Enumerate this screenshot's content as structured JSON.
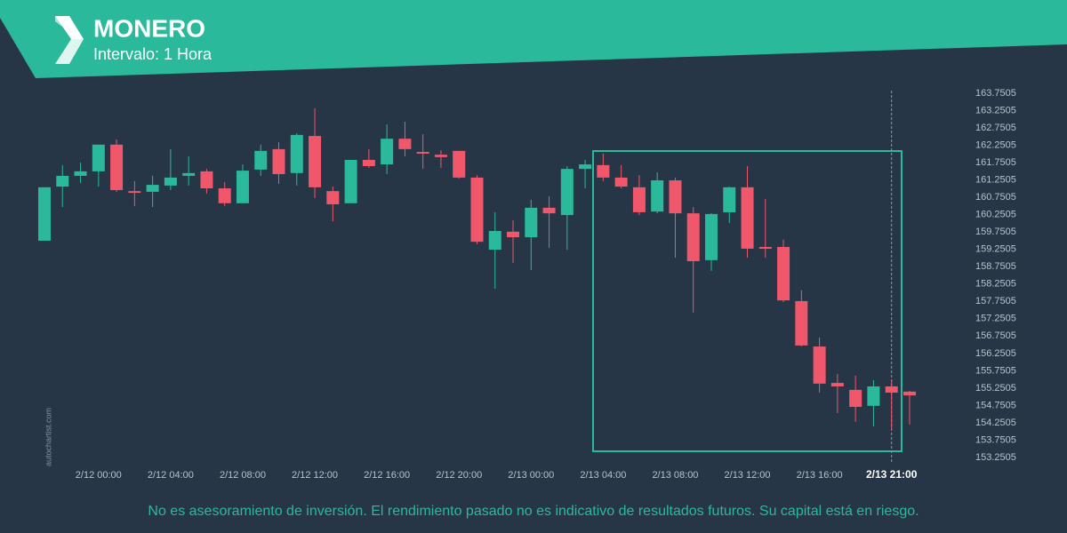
{
  "chart_data": {
    "type": "candlestick",
    "title": "MONERO",
    "subtitle": "Intervalo: 1 Hora",
    "watermark": "autochartist.com",
    "note": "No es asesoramiento de inversión. El rendimiento pasado no es indicativo de resultados futuros. Su capital está en riesgo.",
    "categories": [
      null,
      null,
      null,
      "2/12 00:00",
      null,
      null,
      null,
      "2/12 04:00",
      null,
      null,
      null,
      "2/12 08:00",
      null,
      null,
      null,
      "2/12 12:00",
      null,
      null,
      null,
      "2/12 16:00",
      null,
      null,
      null,
      "2/12 20:00",
      null,
      null,
      null,
      "2/13 00:00",
      null,
      null,
      null,
      "2/13 04:00",
      null,
      null,
      null,
      "2/13 08:00",
      null,
      null,
      null,
      "2/13 12:00",
      null,
      null,
      null,
      "2/13 16:00",
      null,
      null,
      null,
      "2/13 21:00",
      null
    ],
    "open": [
      159.5,
      161.06,
      161.37,
      161.5,
      162.27,
      160.93,
      160.91,
      161.09,
      161.37,
      161.5,
      161.01,
      160.58,
      161.55,
      162.14,
      161.45,
      162.52,
      160.93,
      160.58,
      161.83,
      161.7,
      162.44,
      162.06,
      161.98,
      162.09,
      161.32,
      159.24,
      159.76,
      159.6,
      160.45,
      160.24,
      161.57,
      161.68,
      161.32,
      161.04,
      160.34,
      161.24,
      160.29,
      158.94,
      160.32,
      161.04,
      159.32,
      159.32,
      157.76,
      156.45,
      155.4,
      155.2,
      154.74,
      155.3,
      155.15
    ],
    "high": [
      161.04,
      161.68,
      161.75,
      162.27,
      162.42,
      161.22,
      161.37,
      162.14,
      161.93,
      161.57,
      161.19,
      161.7,
      162.27,
      162.34,
      162.6,
      163.32,
      161.06,
      161.83,
      162.14,
      162.85,
      162.93,
      162.57,
      162.11,
      162.09,
      161.39,
      160.32,
      160.09,
      160.68,
      160.78,
      161.65,
      161.83,
      162.01,
      161.68,
      161.39,
      161.47,
      161.32,
      160.47,
      160.29,
      161.06,
      161.65,
      160.7,
      159.53,
      158.07,
      156.71,
      155.66,
      155.61,
      155.48,
      155.5,
      155.17
    ],
    "low": [
      159.5,
      160.47,
      161.16,
      161.06,
      160.91,
      160.5,
      160.47,
      160.96,
      161.09,
      160.86,
      160.5,
      160.58,
      161.37,
      161.14,
      161.09,
      160.73,
      160.06,
      160.58,
      161.6,
      161.42,
      161.93,
      161.57,
      161.6,
      161.29,
      159.4,
      158.12,
      158.86,
      158.65,
      159.29,
      159.24,
      161.01,
      161.22,
      161.01,
      160.24,
      160.29,
      159.01,
      157.43,
      158.63,
      160.01,
      159.01,
      159.01,
      157.73,
      156.45,
      155.12,
      154.53,
      154.28,
      154.15,
      154.07,
      154.2
    ],
    "close": [
      161.04,
      161.37,
      161.5,
      162.27,
      160.96,
      160.88,
      161.11,
      161.32,
      161.45,
      161.01,
      160.58,
      161.52,
      162.09,
      161.42,
      162.55,
      161.04,
      160.55,
      161.83,
      161.65,
      162.44,
      162.14,
      162.01,
      161.91,
      161.32,
      159.47,
      159.78,
      159.6,
      160.45,
      160.29,
      161.57,
      161.7,
      161.32,
      161.06,
      160.32,
      161.24,
      160.29,
      158.91,
      160.27,
      161.04,
      159.27,
      159.27,
      157.78,
      156.48,
      155.38,
      155.3,
      154.71,
      155.3,
      155.12,
      155.04
    ],
    "up_color": "#2bb99b",
    "down_color": "#f0576b",
    "ylim": [
      153.2505,
      163.7505
    ],
    "yticks": [
      153.2505,
      153.7505,
      154.2505,
      154.7505,
      155.2505,
      155.7505,
      156.2505,
      156.7505,
      157.2505,
      157.7505,
      158.2505,
      158.7505,
      159.2505,
      159.7505,
      160.2505,
      160.7505,
      161.2505,
      161.7505,
      162.2505,
      162.7505,
      163.2505,
      163.7505
    ]
  }
}
